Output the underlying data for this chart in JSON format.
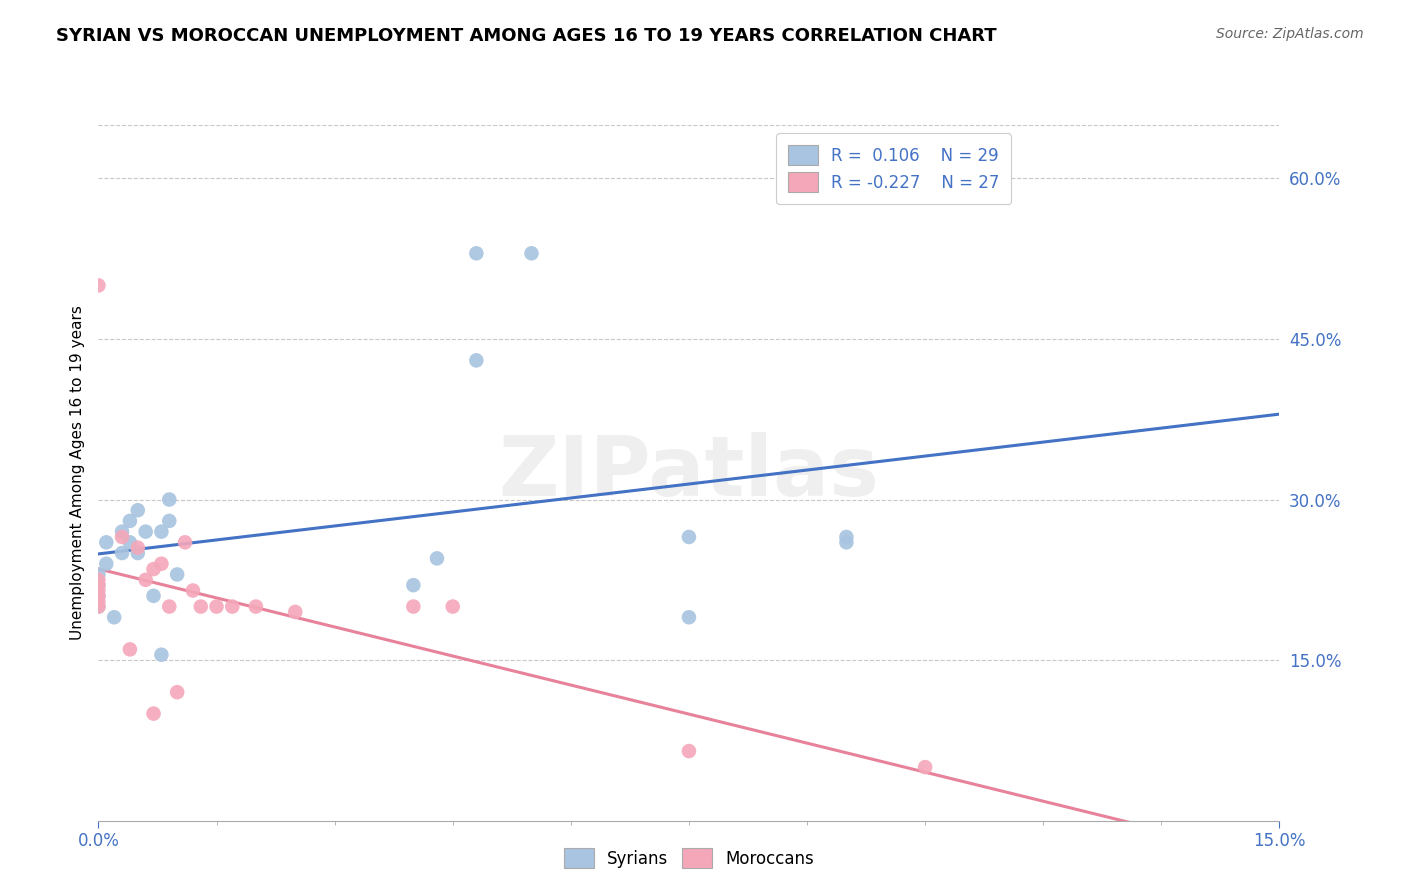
{
  "title": "SYRIAN VS MOROCCAN UNEMPLOYMENT AMONG AGES 16 TO 19 YEARS CORRELATION CHART",
  "source": "Source: ZipAtlas.com",
  "ylabel": "Unemployment Among Ages 16 to 19 years",
  "xlim": [
    0.0,
    0.15
  ],
  "ylim": [
    0.0,
    0.65
  ],
  "xtick_values": [
    0.0,
    0.15
  ],
  "xtick_labels": [
    "0.0%",
    "15.0%"
  ],
  "ytick_values": [
    0.15,
    0.3,
    0.45,
    0.6
  ],
  "ytick_labels": [
    "15.0%",
    "30.0%",
    "45.0%",
    "60.0%"
  ],
  "syrian_R": 0.106,
  "syrian_N": 29,
  "moroccan_R": -0.227,
  "moroccan_N": 27,
  "syrian_color": "#a8c4e0",
  "moroccan_color": "#f4a7b9",
  "syrian_line_color": "#4472c4",
  "moroccan_line_color": "#e8819a",
  "watermark": "ZIPatlas",
  "syrian_points_x": [
    0.0,
    0.0,
    0.0,
    0.0,
    0.001,
    0.001,
    0.002,
    0.003,
    0.003,
    0.004,
    0.004,
    0.005,
    0.005,
    0.006,
    0.007,
    0.008,
    0.008,
    0.009,
    0.009,
    0.01,
    0.04,
    0.043,
    0.048,
    0.048,
    0.055,
    0.075,
    0.075,
    0.095,
    0.095
  ],
  "syrian_points_y": [
    0.2,
    0.21,
    0.22,
    0.23,
    0.24,
    0.26,
    0.19,
    0.25,
    0.27,
    0.26,
    0.28,
    0.25,
    0.29,
    0.27,
    0.21,
    0.155,
    0.27,
    0.28,
    0.3,
    0.23,
    0.22,
    0.245,
    0.43,
    0.53,
    0.53,
    0.19,
    0.265,
    0.26,
    0.265
  ],
  "moroccan_points_x": [
    0.0,
    0.0,
    0.0,
    0.0,
    0.0,
    0.0,
    0.0,
    0.003,
    0.004,
    0.005,
    0.006,
    0.007,
    0.007,
    0.008,
    0.009,
    0.01,
    0.011,
    0.012,
    0.013,
    0.015,
    0.017,
    0.02,
    0.025,
    0.04,
    0.045,
    0.075,
    0.105
  ],
  "moroccan_points_y": [
    0.2,
    0.205,
    0.21,
    0.215,
    0.22,
    0.225,
    0.5,
    0.265,
    0.16,
    0.255,
    0.225,
    0.235,
    0.1,
    0.24,
    0.2,
    0.12,
    0.26,
    0.215,
    0.2,
    0.2,
    0.2,
    0.2,
    0.195,
    0.2,
    0.2,
    0.065,
    0.05
  ],
  "background_color": "#ffffff",
  "grid_color": "#c8c8c8"
}
